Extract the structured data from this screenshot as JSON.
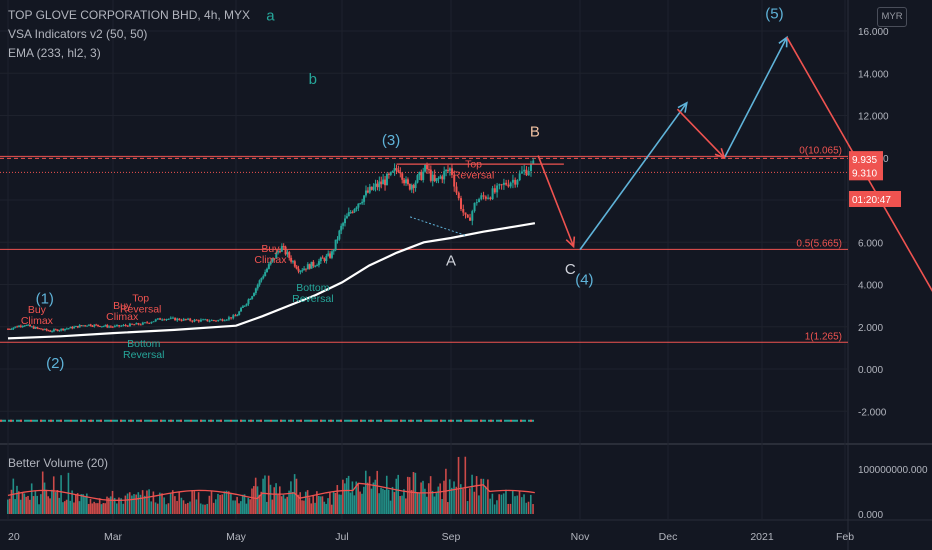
{
  "header": {
    "symbol_line": "TOP GLOVE CORPORATION BHD, 4h, MYX",
    "indicator_1": "VSA Indicators v2 (50, 50)",
    "indicator_2": "EMA (233, hl2, 3)",
    "currency": "MYR"
  },
  "volume_pane": {
    "label": "Better Volume (20)"
  },
  "colors": {
    "background": "#131722",
    "up": "#26a69a",
    "down": "#ef5350",
    "ema": "#ffffff",
    "wave_blue": "#5fb3d9",
    "wave_red": "#ef5350",
    "label_red": "#ef5350",
    "label_green": "#26a69a"
  },
  "chart_data": [
    {
      "type": "candlestick",
      "title": "TOP GLOVE CORPORATION BHD, 4h, MYX",
      "x_ticks": [
        "20",
        "Mar",
        "May",
        "Jul",
        "Sep",
        "Nov",
        "Dec",
        "2021",
        "Feb"
      ],
      "y_ticks": [
        "16.000",
        "14.000",
        "12.000",
        "10.000",
        "8.000",
        "6.000",
        "4.000",
        "2.000",
        "0.000",
        "-2.000"
      ],
      "ylim": [
        -3,
        17
      ],
      "price_path": [
        {
          "m": 0.0,
          "p": 1.9
        },
        {
          "m": 0.3,
          "p": 2.1
        },
        {
          "m": 0.5,
          "p": 1.95
        },
        {
          "m": 0.8,
          "p": 1.8
        },
        {
          "m": 1.2,
          "p": 1.95
        },
        {
          "m": 1.5,
          "p": 2.1
        },
        {
          "m": 2.0,
          "p": 2.0
        },
        {
          "m": 2.5,
          "p": 2.15
        },
        {
          "m": 2.8,
          "p": 2.4
        },
        {
          "m": 3.3,
          "p": 2.3
        },
        {
          "m": 3.7,
          "p": 2.3
        },
        {
          "m": 4.0,
          "p": 2.5
        },
        {
          "m": 4.3,
          "p": 3.5
        },
        {
          "m": 4.5,
          "p": 4.4
        },
        {
          "m": 4.7,
          "p": 5.2
        },
        {
          "m": 4.85,
          "p": 5.8
        },
        {
          "m": 5.0,
          "p": 5.3
        },
        {
          "m": 5.2,
          "p": 4.7
        },
        {
          "m": 5.5,
          "p": 5.0
        },
        {
          "m": 5.8,
          "p": 5.4
        },
        {
          "m": 6.0,
          "p": 6.8
        },
        {
          "m": 6.2,
          "p": 7.6
        },
        {
          "m": 6.4,
          "p": 8.2
        },
        {
          "m": 6.6,
          "p": 8.6
        },
        {
          "m": 6.9,
          "p": 9.1
        },
        {
          "m": 7.05,
          "p": 9.6
        },
        {
          "m": 7.2,
          "p": 8.6
        },
        {
          "m": 7.4,
          "p": 9.0
        },
        {
          "m": 7.55,
          "p": 9.5
        },
        {
          "m": 7.7,
          "p": 8.8
        },
        {
          "m": 7.85,
          "p": 9.2
        },
        {
          "m": 8.0,
          "p": 9.5
        },
        {
          "m": 8.1,
          "p": 8.2
        },
        {
          "m": 8.25,
          "p": 6.9
        },
        {
          "m": 8.4,
          "p": 8.0
        },
        {
          "m": 8.55,
          "p": 8.2
        },
        {
          "m": 8.7,
          "p": 8.4
        },
        {
          "m": 8.85,
          "p": 8.8
        },
        {
          "m": 9.0,
          "p": 9.0
        },
        {
          "m": 9.15,
          "p": 9.4
        },
        {
          "m": 9.3,
          "p": 9.7
        }
      ],
      "ema_path": [
        {
          "m": 0.0,
          "p": 1.45
        },
        {
          "m": 1.0,
          "p": 1.55
        },
        {
          "m": 2.0,
          "p": 1.7
        },
        {
          "m": 3.0,
          "p": 1.85
        },
        {
          "m": 4.0,
          "p": 2.05
        },
        {
          "m": 4.5,
          "p": 2.5
        },
        {
          "m": 5.0,
          "p": 3.0
        },
        {
          "m": 5.5,
          "p": 3.5
        },
        {
          "m": 6.0,
          "p": 4.1
        },
        {
          "m": 6.5,
          "p": 4.9
        },
        {
          "m": 7.0,
          "p": 5.5
        },
        {
          "m": 7.5,
          "p": 6.0
        },
        {
          "m": 8.0,
          "p": 6.2
        },
        {
          "m": 8.5,
          "p": 6.5
        },
        {
          "m": 9.0,
          "p": 6.75
        },
        {
          "m": 9.3,
          "p": 6.9
        }
      ],
      "price_labels": [
        {
          "text": "9.935",
          "value": 9.935,
          "color": "#ef5350"
        },
        {
          "text": "9.310",
          "value": 9.31,
          "color": "#ef5350"
        },
        {
          "text": "01:20:47",
          "value": 8.0,
          "color": "#ef5350"
        }
      ],
      "fib_levels": [
        {
          "label": "0(10.065)",
          "value": 10.065
        },
        {
          "label": "0.5(5.665)",
          "value": 5.665
        },
        {
          "label": "1(1.265)",
          "value": 1.265
        }
      ],
      "dotted_level": 9.31,
      "wave_labels": [
        {
          "text": "(1)",
          "m": 0.7,
          "p": 3.1,
          "color": "#5fb3d9"
        },
        {
          "text": "(2)",
          "m": 0.9,
          "p": 0.05,
          "color": "#5fb3d9"
        },
        {
          "text": "(3)",
          "m": 6.9,
          "p": 10.6,
          "color": "#5fb3d9"
        },
        {
          "text": "(4)",
          "m": 10.05,
          "p": 4.0,
          "color": "#5fb3d9"
        },
        {
          "text": "(5)",
          "m": 12.15,
          "p": 16.6,
          "color": "#5fb3d9"
        },
        {
          "text": "A",
          "m": 8.0,
          "p": 4.9,
          "color": "#d1d4dc"
        },
        {
          "text": "B",
          "m": 9.3,
          "p": 11.0,
          "color": "#f0c0a0"
        },
        {
          "text": "C",
          "m": 9.85,
          "p": 4.5,
          "color": "#d1d4dc"
        },
        {
          "text": "a",
          "m": 4.65,
          "p": 16.5,
          "color": "#26a69a"
        },
        {
          "text": "b",
          "m": 5.45,
          "p": 13.5,
          "color": "#26a69a"
        }
      ],
      "signal_labels": [
        {
          "text": "Buy",
          "line2": "Climax",
          "m": 0.55,
          "p": 2.65,
          "color": "#ef5350"
        },
        {
          "text": "Buy",
          "line2": "Climax",
          "m": 2.15,
          "p": 2.85,
          "color": "#ef5350"
        },
        {
          "text": "Top",
          "line2": "Reversal",
          "m": 2.45,
          "p": 3.2,
          "color": "#ef5350"
        },
        {
          "text": "Bottom",
          "line2": "Reversal",
          "m": 2.5,
          "p": 1.05,
          "color": "#26a69a"
        },
        {
          "text": "Buy",
          "line2": "Climax",
          "m": 4.65,
          "p": 5.55,
          "color": "#ef5350"
        },
        {
          "text": "Bottom",
          "line2": "Reversal",
          "m": 5.45,
          "p": 3.7,
          "color": "#26a69a"
        },
        {
          "text": "Top",
          "line2": "Reversal",
          "m": 8.35,
          "p": 9.55,
          "color": "#ef5350"
        }
      ],
      "projection_blue": [
        {
          "m": 10.0,
          "p": 5.65
        },
        {
          "m": 11.2,
          "p": 12.6
        },
        {
          "m": 11.15,
          "p": 12.4
        },
        {
          "m": 11.6,
          "p": 10.0
        },
        {
          "m": 12.3,
          "p": 15.7
        }
      ],
      "projection_red": [
        {
          "m": 11.1,
          "p": 12.3
        },
        {
          "m": 11.6,
          "p": 10.0
        },
        {
          "m": 12.3,
          "p": 15.7
        },
        {
          "m": 14.3,
          "p": 2.0
        }
      ],
      "abc_red": [
        {
          "m": 9.35,
          "p": 10.1
        },
        {
          "m": 9.9,
          "p": 5.8
        }
      ]
    },
    {
      "type": "bar",
      "title": "Better Volume (20)",
      "y_ticks": [
        "100000000.000",
        "0.000"
      ],
      "ylim": [
        0,
        130000000
      ]
    }
  ]
}
